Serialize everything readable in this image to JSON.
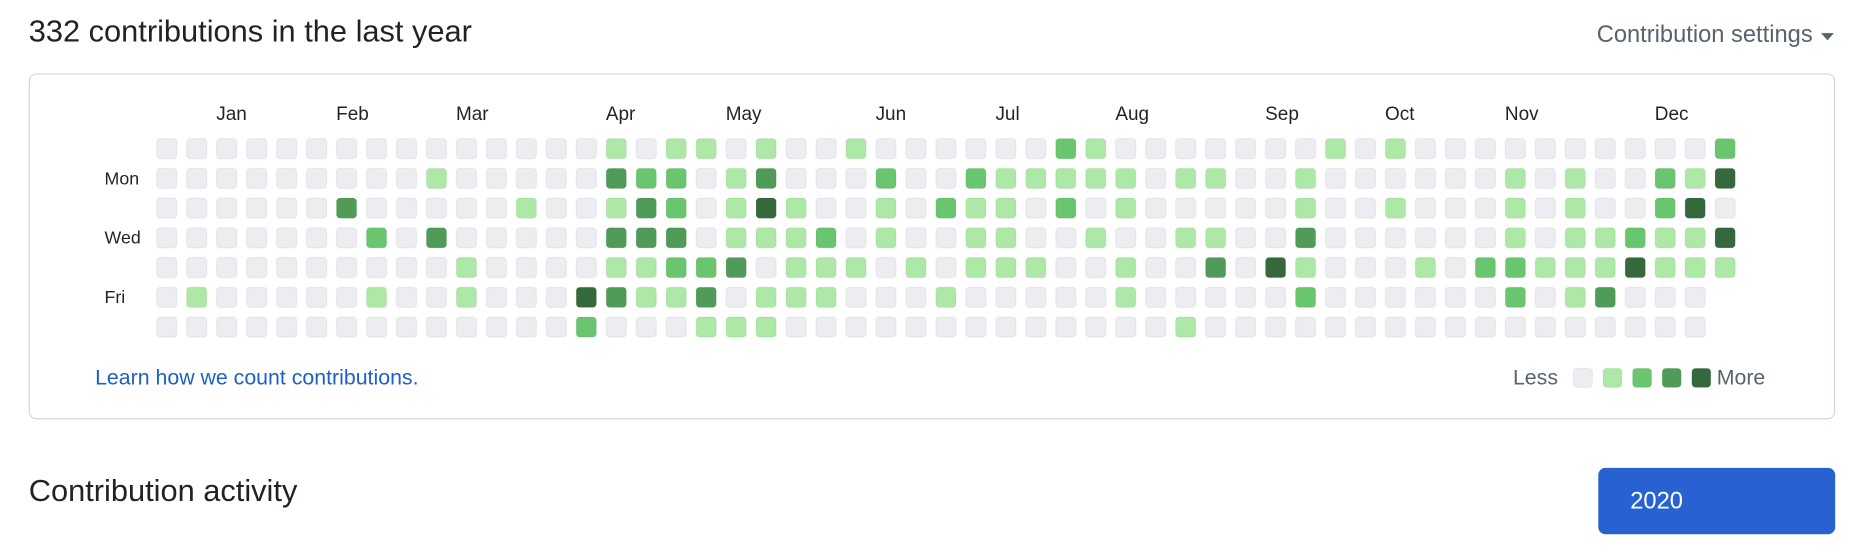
{
  "header": {
    "title": "332 contributions in the last year",
    "settings_label": "Contribution settings"
  },
  "calendar": {
    "month_labels": [
      null,
      "Jan",
      null,
      null,
      null,
      "Feb",
      null,
      null,
      null,
      "Mar",
      null,
      null,
      null,
      null,
      "Apr",
      null,
      null,
      null,
      "May",
      null,
      null,
      null,
      null,
      "Jun",
      null,
      null,
      null,
      "Jul",
      null,
      null,
      null,
      "Aug",
      null,
      null,
      null,
      null,
      "Sep",
      null,
      null,
      null,
      "Oct",
      null,
      null,
      null,
      "Nov",
      null,
      null,
      null,
      null,
      "Dec",
      null,
      null,
      null
    ],
    "day_labels": [
      null,
      "Mon",
      null,
      "Wed",
      null,
      "Fri",
      null
    ],
    "level_colors": [
      "#ebedf0",
      "#ade8a6",
      "#6ac56f",
      "#4f9b57",
      "#36683d"
    ],
    "levels": [
      [
        0,
        0,
        0,
        0,
        0,
        0,
        0,
        0,
        0,
        0,
        0,
        0,
        0,
        0,
        0,
        1,
        0,
        1,
        1,
        0,
        1,
        0,
        0,
        1,
        0,
        0,
        0,
        0,
        0,
        0,
        2,
        1,
        0,
        0,
        0,
        0,
        0,
        0,
        0,
        1,
        0,
        1,
        0,
        0,
        0,
        0,
        0,
        0,
        0,
        0,
        0,
        0,
        2
      ],
      [
        0,
        0,
        0,
        0,
        0,
        0,
        0,
        0,
        0,
        1,
        0,
        0,
        0,
        0,
        0,
        3,
        2,
        2,
        0,
        1,
        3,
        0,
        0,
        0,
        2,
        0,
        0,
        2,
        1,
        1,
        1,
        1,
        1,
        0,
        1,
        1,
        0,
        0,
        1,
        0,
        0,
        0,
        0,
        0,
        0,
        1,
        0,
        1,
        0,
        0,
        2,
        1,
        4
      ],
      [
        0,
        0,
        0,
        0,
        0,
        0,
        3,
        0,
        0,
        0,
        0,
        0,
        1,
        0,
        0,
        1,
        3,
        2,
        0,
        1,
        4,
        1,
        0,
        0,
        1,
        0,
        2,
        1,
        1,
        0,
        2,
        0,
        1,
        0,
        0,
        0,
        0,
        0,
        1,
        0,
        0,
        1,
        0,
        0,
        0,
        1,
        0,
        1,
        0,
        0,
        2,
        4,
        0
      ],
      [
        0,
        0,
        0,
        0,
        0,
        0,
        0,
        2,
        0,
        3,
        0,
        0,
        0,
        0,
        0,
        3,
        3,
        3,
        0,
        1,
        1,
        1,
        2,
        0,
        1,
        0,
        0,
        1,
        1,
        0,
        0,
        1,
        0,
        0,
        1,
        1,
        0,
        0,
        3,
        0,
        0,
        0,
        0,
        0,
        0,
        1,
        0,
        1,
        1,
        2,
        1,
        1,
        4
      ],
      [
        0,
        0,
        0,
        0,
        0,
        0,
        0,
        0,
        0,
        0,
        1,
        0,
        0,
        0,
        0,
        1,
        1,
        2,
        2,
        3,
        0,
        1,
        1,
        1,
        0,
        1,
        0,
        1,
        1,
        1,
        0,
        0,
        1,
        0,
        0,
        3,
        0,
        4,
        1,
        0,
        0,
        0,
        1,
        0,
        2,
        2,
        1,
        1,
        1,
        4,
        1,
        1,
        1
      ],
      [
        0,
        1,
        0,
        0,
        0,
        0,
        0,
        1,
        0,
        0,
        1,
        0,
        0,
        0,
        4,
        3,
        1,
        1,
        3,
        0,
        1,
        1,
        1,
        0,
        0,
        0,
        1,
        0,
        0,
        0,
        0,
        0,
        1,
        0,
        0,
        0,
        0,
        0,
        2,
        0,
        0,
        0,
        0,
        0,
        0,
        2,
        0,
        1,
        3,
        0,
        0,
        0,
        null
      ],
      [
        0,
        0,
        0,
        0,
        0,
        0,
        0,
        0,
        0,
        0,
        0,
        0,
        0,
        0,
        2,
        0,
        0,
        0,
        1,
        1,
        1,
        0,
        0,
        0,
        0,
        0,
        0,
        0,
        0,
        0,
        0,
        0,
        0,
        0,
        1,
        0,
        0,
        0,
        0,
        0,
        0,
        0,
        0,
        0,
        0,
        0,
        0,
        0,
        0,
        0,
        0,
        0,
        null
      ]
    ],
    "learn_link": "Learn how we count contributions.",
    "legend_less": "Less",
    "legend_more": "More",
    "legend_levels": [
      0,
      1,
      2,
      3,
      4
    ]
  },
  "activity": {
    "title": "Contribution activity",
    "year": "2020"
  }
}
